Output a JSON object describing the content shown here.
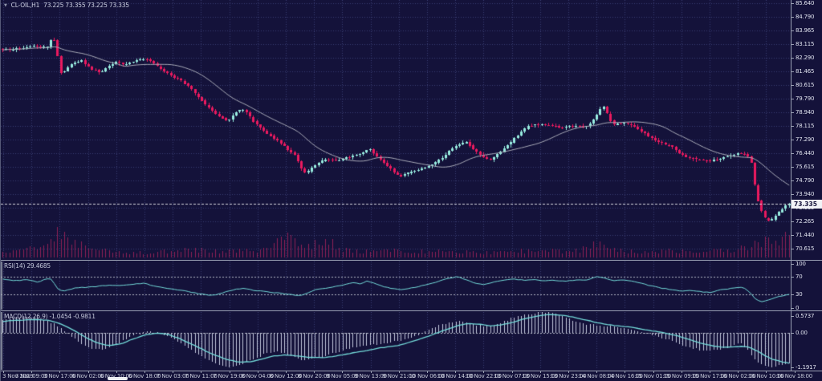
{
  "window": {
    "symbol_period": "CL-OIL,H1",
    "ohlc_values": "73.225 73.355 73.225 73.335"
  },
  "price_axis": {
    "labels": [
      "85.640",
      "84.790",
      "83.965",
      "83.115",
      "82.290",
      "81.465",
      "80.615",
      "79.790",
      "78.940",
      "78.115",
      "77.290",
      "76.440",
      "75.615",
      "74.790",
      "73.940",
      "73.115",
      "72.265",
      "71.440",
      "70.615"
    ],
    "current_price": "73.335"
  },
  "rsi_panel": {
    "label": "RSI(14) 29.4685",
    "axis_labels": [
      "100",
      "70",
      "30",
      "0"
    ],
    "level_lines": [
      70,
      30
    ]
  },
  "macd_panel": {
    "label": "MACD(12,26,9) -1.0454 -0.9811",
    "axis_labels": [
      "0.5737",
      "0.00",
      "-1.1917"
    ]
  },
  "time_axis": {
    "labels": [
      "3 Nov 2023",
      "3 Nov 09:00",
      "3 Nov 17:00",
      "6 Nov 02:00",
      "6 Nov 10:00",
      "6 Nov 18:00",
      "7 Nov 03:00",
      "7 Nov 11:00",
      "7 Nov 19:00",
      "8 Nov 04:00",
      "8 Nov 12:00",
      "8 Nov 20:00",
      "9 Nov 05:00",
      "9 Nov 13:00",
      "9 Nov 21:00",
      "10 Nov 06:00",
      "10 Nov 14:00",
      "10 Nov 22:00",
      "13 Nov 07:00",
      "13 Nov 15:00",
      "13 Nov 23:00",
      "14 Nov 08:00",
      "14 Nov 16:00",
      "15 Nov 01:00",
      "15 Nov 09:00",
      "15 Nov 17:00",
      "16 Nov 02:00",
      "16 Nov 10:00",
      "16 Nov 18:00"
    ]
  },
  "chart_data": {
    "type": "candlestick",
    "symbol": "CL-OIL",
    "timeframe": "H1",
    "title": "CL-OIL,H1 73.225 73.355 73.225 73.335",
    "last_open": 73.225,
    "last_high": 73.355,
    "last_low": 73.225,
    "last_close": 73.335,
    "price_axis_top": 85.64,
    "price_axis_bottom": 70.615,
    "candle_count": 230,
    "indicators": {
      "ma": {
        "type": "SMA",
        "period": 20
      },
      "rsi": {
        "period": 14,
        "last_value": 29.4685,
        "levels": [
          70,
          30
        ],
        "range": [
          0,
          100
        ]
      },
      "macd": {
        "fast": 12,
        "slow": 26,
        "signal": 9,
        "last_main": -1.0454,
        "last_signal": -0.9811,
        "scale_top": 0.5737,
        "scale_bottom": -1.1917
      }
    },
    "close_path": [
      [
        0.0,
        82.75
      ],
      [
        0.004,
        82.78
      ],
      [
        0.02,
        82.87
      ],
      [
        0.04,
        83.05
      ],
      [
        0.056,
        82.9
      ],
      [
        0.063,
        83.5
      ],
      [
        0.068,
        83.2
      ],
      [
        0.071,
        81.9
      ],
      [
        0.075,
        81.25
      ],
      [
        0.079,
        81.5
      ],
      [
        0.09,
        81.99
      ],
      [
        0.1,
        82.1
      ],
      [
        0.112,
        81.6
      ],
      [
        0.124,
        81.4
      ],
      [
        0.134,
        81.74
      ],
      [
        0.144,
        82.0
      ],
      [
        0.155,
        81.9
      ],
      [
        0.168,
        82.1
      ],
      [
        0.181,
        82.25
      ],
      [
        0.193,
        81.9
      ],
      [
        0.205,
        81.5
      ],
      [
        0.216,
        81.1
      ],
      [
        0.226,
        80.9
      ],
      [
        0.236,
        80.55
      ],
      [
        0.246,
        80.0
      ],
      [
        0.256,
        79.5
      ],
      [
        0.266,
        79.1
      ],
      [
        0.276,
        78.65
      ],
      [
        0.287,
        78.4
      ],
      [
        0.295,
        78.9
      ],
      [
        0.305,
        79.15
      ],
      [
        0.312,
        78.8
      ],
      [
        0.322,
        78.25
      ],
      [
        0.338,
        77.6
      ],
      [
        0.355,
        77.0
      ],
      [
        0.372,
        76.3
      ],
      [
        0.381,
        75.4
      ],
      [
        0.386,
        75.2
      ],
      [
        0.396,
        75.7
      ],
      [
        0.41,
        76.1
      ],
      [
        0.424,
        75.95
      ],
      [
        0.44,
        76.2
      ],
      [
        0.457,
        76.45
      ],
      [
        0.467,
        76.7
      ],
      [
        0.478,
        76.15
      ],
      [
        0.491,
        75.6
      ],
      [
        0.505,
        75.0
      ],
      [
        0.515,
        75.25
      ],
      [
        0.526,
        75.4
      ],
      [
        0.542,
        75.65
      ],
      [
        0.559,
        76.2
      ],
      [
        0.576,
        76.9
      ],
      [
        0.59,
        77.15
      ],
      [
        0.603,
        76.5
      ],
      [
        0.619,
        76.0
      ],
      [
        0.637,
        76.7
      ],
      [
        0.654,
        77.5
      ],
      [
        0.668,
        78.1
      ],
      [
        0.681,
        78.2
      ],
      [
        0.695,
        78.15
      ],
      [
        0.71,
        78.0
      ],
      [
        0.724,
        78.1
      ],
      [
        0.742,
        78.05
      ],
      [
        0.752,
        78.5
      ],
      [
        0.763,
        79.35
      ],
      [
        0.768,
        78.9
      ],
      [
        0.776,
        78.2
      ],
      [
        0.79,
        78.3
      ],
      [
        0.8,
        78.15
      ],
      [
        0.812,
        77.8
      ],
      [
        0.824,
        77.4
      ],
      [
        0.836,
        77.1
      ],
      [
        0.849,
        76.9
      ],
      [
        0.861,
        76.4
      ],
      [
        0.873,
        76.15
      ],
      [
        0.886,
        76.0
      ],
      [
        0.898,
        75.95
      ],
      [
        0.912,
        76.15
      ],
      [
        0.925,
        76.3
      ],
      [
        0.937,
        76.45
      ],
      [
        0.945,
        76.35
      ],
      [
        0.951,
        76.1
      ],
      [
        0.957,
        74.3
      ],
      [
        0.962,
        73.3
      ],
      [
        0.968,
        72.5
      ],
      [
        0.975,
        72.25
      ],
      [
        0.982,
        72.6
      ],
      [
        0.99,
        73.0
      ],
      [
        1.0,
        73.335
      ]
    ],
    "rsi_path": [
      [
        0.0,
        64
      ],
      [
        0.015,
        61
      ],
      [
        0.03,
        63
      ],
      [
        0.045,
        58
      ],
      [
        0.055,
        66
      ],
      [
        0.062,
        64
      ],
      [
        0.07,
        42
      ],
      [
        0.078,
        37
      ],
      [
        0.09,
        44
      ],
      [
        0.105,
        46
      ],
      [
        0.12,
        48
      ],
      [
        0.135,
        51
      ],
      [
        0.15,
        50
      ],
      [
        0.165,
        53
      ],
      [
        0.18,
        55
      ],
      [
        0.19,
        50
      ],
      [
        0.2,
        47
      ],
      [
        0.215,
        42
      ],
      [
        0.23,
        39
      ],
      [
        0.245,
        33
      ],
      [
        0.258,
        29
      ],
      [
        0.27,
        28
      ],
      [
        0.285,
        37
      ],
      [
        0.298,
        42
      ],
      [
        0.308,
        44
      ],
      [
        0.32,
        39
      ],
      [
        0.335,
        36
      ],
      [
        0.35,
        33
      ],
      [
        0.365,
        30
      ],
      [
        0.378,
        27
      ],
      [
        0.39,
        35
      ],
      [
        0.4,
        42
      ],
      [
        0.415,
        45
      ],
      [
        0.43,
        50
      ],
      [
        0.44,
        54
      ],
      [
        0.447,
        58
      ],
      [
        0.455,
        53
      ],
      [
        0.463,
        60
      ],
      [
        0.472,
        55
      ],
      [
        0.483,
        48
      ],
      [
        0.495,
        43
      ],
      [
        0.507,
        40
      ],
      [
        0.52,
        45
      ],
      [
        0.535,
        50
      ],
      [
        0.55,
        57
      ],
      [
        0.565,
        66
      ],
      [
        0.578,
        70
      ],
      [
        0.59,
        63
      ],
      [
        0.6,
        55
      ],
      [
        0.612,
        52
      ],
      [
        0.625,
        58
      ],
      [
        0.638,
        63
      ],
      [
        0.65,
        65
      ],
      [
        0.662,
        62
      ],
      [
        0.675,
        64
      ],
      [
        0.688,
        60
      ],
      [
        0.7,
        62
      ],
      [
        0.715,
        60
      ],
      [
        0.73,
        63
      ],
      [
        0.742,
        62
      ],
      [
        0.755,
        71
      ],
      [
        0.765,
        67
      ],
      [
        0.775,
        61
      ],
      [
        0.79,
        63
      ],
      [
        0.8,
        60
      ],
      [
        0.812,
        55
      ],
      [
        0.825,
        49
      ],
      [
        0.838,
        44
      ],
      [
        0.85,
        41
      ],
      [
        0.862,
        37
      ],
      [
        0.875,
        39
      ],
      [
        0.887,
        36
      ],
      [
        0.9,
        34
      ],
      [
        0.912,
        40
      ],
      [
        0.925,
        43
      ],
      [
        0.937,
        46
      ],
      [
        0.945,
        43
      ],
      [
        0.952,
        30
      ],
      [
        0.958,
        17
      ],
      [
        0.965,
        13
      ],
      [
        0.972,
        16
      ],
      [
        0.98,
        22
      ],
      [
        0.988,
        26
      ],
      [
        1.0,
        29.5
      ]
    ],
    "macd_signal_path": [
      [
        0.0,
        0.4
      ],
      [
        0.02,
        0.44
      ],
      [
        0.04,
        0.46
      ],
      [
        0.06,
        0.43
      ],
      [
        0.075,
        0.3
      ],
      [
        0.09,
        0.1
      ],
      [
        0.105,
        -0.15
      ],
      [
        0.12,
        -0.35
      ],
      [
        0.135,
        -0.44
      ],
      [
        0.15,
        -0.38
      ],
      [
        0.165,
        -0.22
      ],
      [
        0.18,
        -0.08
      ],
      [
        0.195,
        -0.01
      ],
      [
        0.21,
        -0.05
      ],
      [
        0.225,
        -0.2
      ],
      [
        0.245,
        -0.45
      ],
      [
        0.265,
        -0.72
      ],
      [
        0.285,
        -0.92
      ],
      [
        0.3,
        -1.01
      ],
      [
        0.315,
        -1.0
      ],
      [
        0.33,
        -0.9
      ],
      [
        0.345,
        -0.8
      ],
      [
        0.36,
        -0.76
      ],
      [
        0.375,
        -0.8
      ],
      [
        0.39,
        -0.85
      ],
      [
        0.405,
        -0.86
      ],
      [
        0.42,
        -0.82
      ],
      [
        0.44,
        -0.72
      ],
      [
        0.46,
        -0.62
      ],
      [
        0.48,
        -0.52
      ],
      [
        0.5,
        -0.45
      ],
      [
        0.515,
        -0.35
      ],
      [
        0.53,
        -0.22
      ],
      [
        0.545,
        -0.08
      ],
      [
        0.56,
        0.08
      ],
      [
        0.575,
        0.22
      ],
      [
        0.59,
        0.32
      ],
      [
        0.605,
        0.3
      ],
      [
        0.62,
        0.24
      ],
      [
        0.635,
        0.28
      ],
      [
        0.65,
        0.38
      ],
      [
        0.665,
        0.5
      ],
      [
        0.68,
        0.58
      ],
      [
        0.695,
        0.63
      ],
      [
        0.71,
        0.62
      ],
      [
        0.725,
        0.55
      ],
      [
        0.74,
        0.45
      ],
      [
        0.755,
        0.36
      ],
      [
        0.77,
        0.28
      ],
      [
        0.785,
        0.24
      ],
      [
        0.8,
        0.19
      ],
      [
        0.815,
        0.12
      ],
      [
        0.83,
        0.05
      ],
      [
        0.845,
        -0.02
      ],
      [
        0.86,
        -0.12
      ],
      [
        0.875,
        -0.25
      ],
      [
        0.89,
        -0.38
      ],
      [
        0.905,
        -0.46
      ],
      [
        0.917,
        -0.5
      ],
      [
        0.93,
        -0.49
      ],
      [
        0.94,
        -0.46
      ],
      [
        0.95,
        -0.51
      ],
      [
        0.96,
        -0.63
      ],
      [
        0.97,
        -0.8
      ],
      [
        0.98,
        -0.93
      ],
      [
        0.99,
        -1.0
      ],
      [
        1.0,
        -1.05
      ]
    ],
    "macd_main_path": [
      [
        0.0,
        0.46
      ],
      [
        0.02,
        0.54
      ],
      [
        0.035,
        0.57
      ],
      [
        0.05,
        0.5
      ],
      [
        0.065,
        0.32
      ],
      [
        0.08,
        0.05
      ],
      [
        0.095,
        -0.3
      ],
      [
        0.11,
        -0.52
      ],
      [
        0.125,
        -0.58
      ],
      [
        0.14,
        -0.45
      ],
      [
        0.155,
        -0.25
      ],
      [
        0.17,
        -0.05
      ],
      [
        0.185,
        0.05
      ],
      [
        0.2,
        0.0
      ],
      [
        0.215,
        -0.18
      ],
      [
        0.235,
        -0.5
      ],
      [
        0.255,
        -0.85
      ],
      [
        0.275,
        -1.1
      ],
      [
        0.29,
        -1.2
      ],
      [
        0.305,
        -1.1
      ],
      [
        0.32,
        -0.9
      ],
      [
        0.335,
        -0.72
      ],
      [
        0.35,
        -0.65
      ],
      [
        0.365,
        -0.78
      ],
      [
        0.38,
        -0.95
      ],
      [
        0.395,
        -0.9
      ],
      [
        0.41,
        -0.8
      ],
      [
        0.43,
        -0.62
      ],
      [
        0.45,
        -0.48
      ],
      [
        0.47,
        -0.4
      ],
      [
        0.49,
        -0.35
      ],
      [
        0.51,
        -0.25
      ],
      [
        0.525,
        -0.1
      ],
      [
        0.54,
        0.08
      ],
      [
        0.555,
        0.25
      ],
      [
        0.57,
        0.38
      ],
      [
        0.585,
        0.42
      ],
      [
        0.6,
        0.3
      ],
      [
        0.615,
        0.22
      ],
      [
        0.63,
        0.32
      ],
      [
        0.645,
        0.48
      ],
      [
        0.66,
        0.6
      ],
      [
        0.675,
        0.68
      ],
      [
        0.69,
        0.72
      ],
      [
        0.705,
        0.65
      ],
      [
        0.72,
        0.5
      ],
      [
        0.735,
        0.35
      ],
      [
        0.75,
        0.28
      ],
      [
        0.765,
        0.24
      ],
      [
        0.78,
        0.2
      ],
      [
        0.795,
        0.12
      ],
      [
        0.81,
        0.03
      ],
      [
        0.825,
        -0.08
      ],
      [
        0.84,
        -0.18
      ],
      [
        0.855,
        -0.32
      ],
      [
        0.87,
        -0.48
      ],
      [
        0.885,
        -0.58
      ],
      [
        0.9,
        -0.62
      ],
      [
        0.915,
        -0.55
      ],
      [
        0.93,
        -0.42
      ],
      [
        0.94,
        -0.38
      ],
      [
        0.95,
        -0.68
      ],
      [
        0.96,
        -1.0
      ],
      [
        0.97,
        -1.15
      ],
      [
        0.98,
        -1.19
      ],
      [
        0.99,
        -1.12
      ],
      [
        1.0,
        -1.05
      ]
    ],
    "volume_path": [
      [
        0.0,
        8
      ],
      [
        0.02,
        10
      ],
      [
        0.04,
        14
      ],
      [
        0.06,
        30
      ],
      [
        0.068,
        46
      ],
      [
        0.075,
        42
      ],
      [
        0.085,
        30
      ],
      [
        0.1,
        20
      ],
      [
        0.12,
        12
      ],
      [
        0.14,
        10
      ],
      [
        0.16,
        9
      ],
      [
        0.18,
        8
      ],
      [
        0.2,
        10
      ],
      [
        0.22,
        12
      ],
      [
        0.24,
        13
      ],
      [
        0.26,
        11
      ],
      [
        0.28,
        9
      ],
      [
        0.3,
        12
      ],
      [
        0.32,
        10
      ],
      [
        0.345,
        22
      ],
      [
        0.36,
        34
      ],
      [
        0.375,
        26
      ],
      [
        0.39,
        18
      ],
      [
        0.405,
        28
      ],
      [
        0.42,
        22
      ],
      [
        0.44,
        12
      ],
      [
        0.46,
        10
      ],
      [
        0.48,
        13
      ],
      [
        0.5,
        11
      ],
      [
        0.52,
        8
      ],
      [
        0.54,
        11
      ],
      [
        0.56,
        9
      ],
      [
        0.58,
        8
      ],
      [
        0.6,
        10
      ],
      [
        0.62,
        8
      ],
      [
        0.64,
        9
      ],
      [
        0.66,
        11
      ],
      [
        0.68,
        9
      ],
      [
        0.7,
        12
      ],
      [
        0.72,
        10
      ],
      [
        0.74,
        16
      ],
      [
        0.755,
        24
      ],
      [
        0.77,
        14
      ],
      [
        0.79,
        11
      ],
      [
        0.81,
        9
      ],
      [
        0.83,
        11
      ],
      [
        0.85,
        12
      ],
      [
        0.87,
        10
      ],
      [
        0.89,
        9
      ],
      [
        0.91,
        11
      ],
      [
        0.93,
        12
      ],
      [
        0.945,
        16
      ],
      [
        0.955,
        26
      ],
      [
        0.965,
        22
      ],
      [
        0.975,
        30
      ],
      [
        0.985,
        26
      ],
      [
        1.0,
        40
      ]
    ],
    "colors": {
      "background": "#14123a",
      "grid": "#3a3e72",
      "bull": "#97ebdf",
      "bear": "#ea1a5f",
      "volume": "#8d2056",
      "ma_line": "#a9abb8",
      "indicator_line": "#74dcda",
      "histogram": "#c2c7dc",
      "level_dash": "#b2b6c4",
      "current_price_dash": "#d4d6de",
      "axis_text": "#dfe2ee",
      "separator": "#9aa0b4",
      "price_tag_bg": "#f2f3f7",
      "price_tag_text": "#14123a"
    }
  }
}
